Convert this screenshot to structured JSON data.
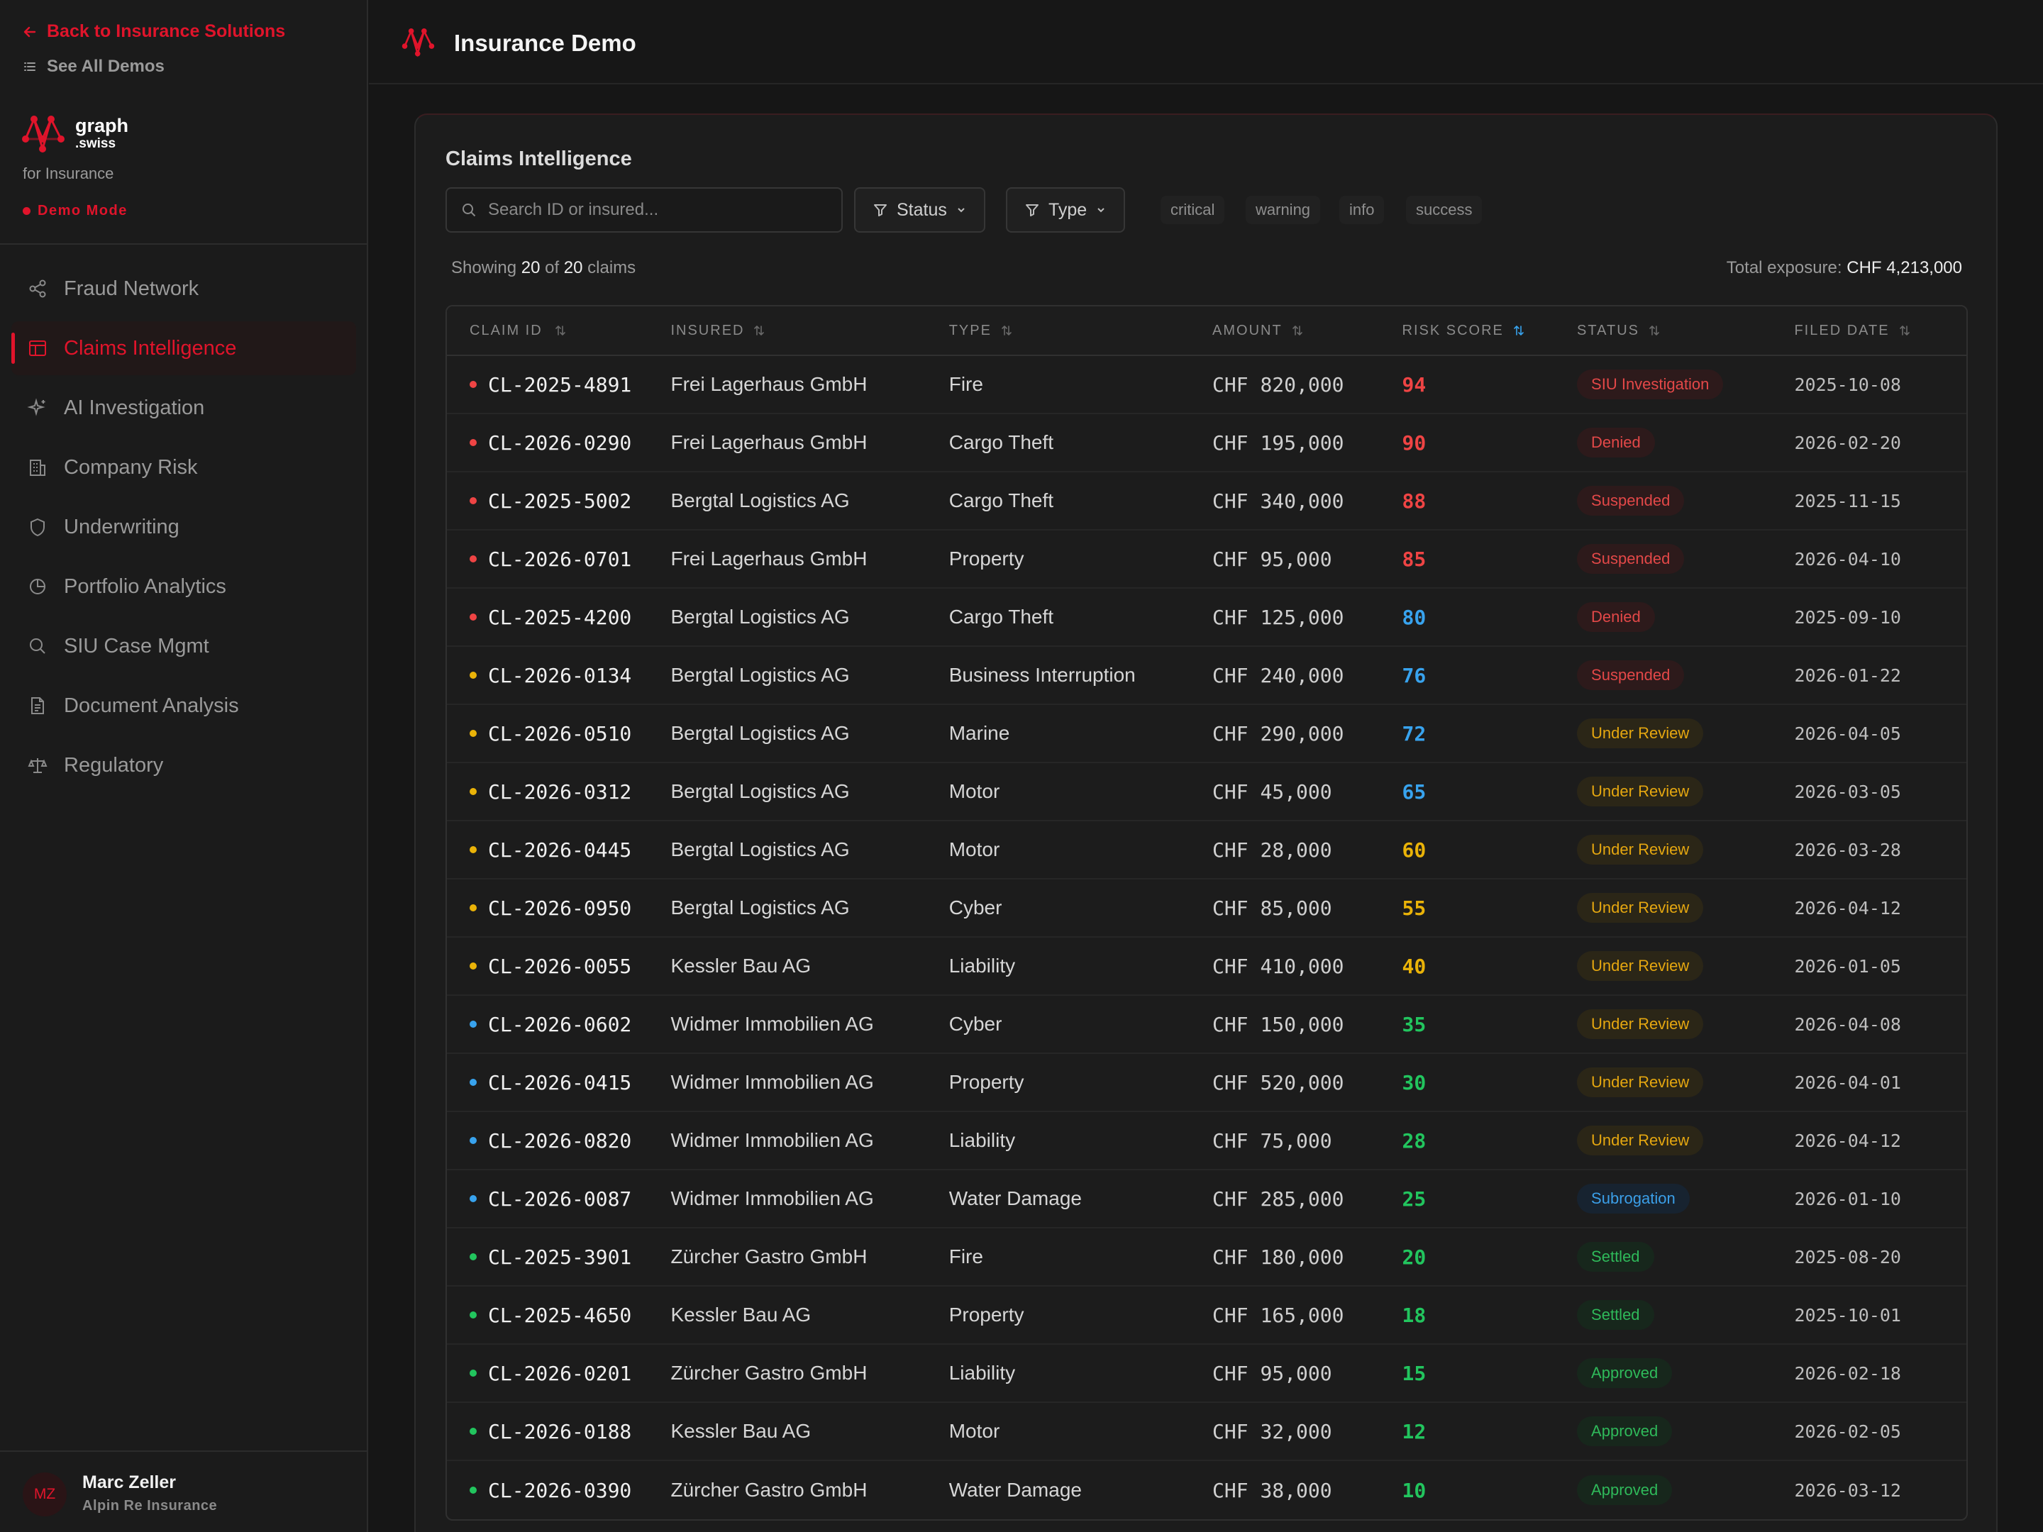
{
  "sidebar": {
    "back_label": "Back to Insurance Solutions",
    "see_all_label": "See All Demos",
    "brand_name": "graph",
    "brand_tld": ".swiss",
    "brand_sub": "for Insurance",
    "mode_label": "Demo Mode",
    "nav": [
      {
        "label": "Fraud Network",
        "icon": "share-nodes-icon"
      },
      {
        "label": "Claims Intelligence",
        "icon": "table-icon",
        "active": true
      },
      {
        "label": "AI Investigation",
        "icon": "sparkles-icon"
      },
      {
        "label": "Company Risk",
        "icon": "building-icon"
      },
      {
        "label": "Underwriting",
        "icon": "shield-icon"
      },
      {
        "label": "Portfolio Analytics",
        "icon": "pie-chart-icon"
      },
      {
        "label": "SIU Case Mgmt",
        "icon": "search-icon"
      },
      {
        "label": "Document Analysis",
        "icon": "document-icon"
      },
      {
        "label": "Regulatory",
        "icon": "scale-icon"
      }
    ],
    "user": {
      "initials": "MZ",
      "name": "Marc Zeller",
      "org": "Alpin Re Insurance"
    }
  },
  "header": {
    "title": "Insurance Demo"
  },
  "main": {
    "title": "Claims Intelligence",
    "search_placeholder": "Search ID or insured...",
    "filter_status": "Status",
    "filter_type": "Type",
    "chips": [
      "critical",
      "warning",
      "info",
      "success"
    ],
    "showing_prefix": "Showing",
    "showing_count": "20",
    "showing_of": "of",
    "showing_total": "20",
    "showing_suffix": "claims",
    "exposure_label": "Total exposure:",
    "exposure_value": "CHF 4,213,000",
    "columns": [
      "CLAIM ID",
      "INSURED",
      "TYPE",
      "AMOUNT",
      "RISK SCORE",
      "STATUS",
      "FILED DATE"
    ],
    "sorted_column": "RISK SCORE",
    "colors": {
      "accent": "#e0142b",
      "risk_red": "#ef4444",
      "risk_blue": "#38a3ee",
      "risk_amber": "#eab308",
      "risk_green": "#22c55e"
    },
    "claims": [
      {
        "id": "CL-2025-4891",
        "insured": "Frei Lagerhaus GmbH",
        "type": "Fire",
        "amount": "CHF 820,000",
        "risk": "94",
        "status": "SIU Investigation",
        "date": "2025-10-08",
        "severity": "critical"
      },
      {
        "id": "CL-2026-0290",
        "insured": "Frei Lagerhaus GmbH",
        "type": "Cargo Theft",
        "amount": "CHF 195,000",
        "risk": "90",
        "status": "Denied",
        "date": "2026-02-20",
        "severity": "critical"
      },
      {
        "id": "CL-2025-5002",
        "insured": "Bergtal Logistics AG",
        "type": "Cargo Theft",
        "amount": "CHF 340,000",
        "risk": "88",
        "status": "Suspended",
        "date": "2025-11-15",
        "severity": "critical"
      },
      {
        "id": "CL-2026-0701",
        "insured": "Frei Lagerhaus GmbH",
        "type": "Property",
        "amount": "CHF 95,000",
        "risk": "85",
        "status": "Suspended",
        "date": "2026-04-10",
        "severity": "critical"
      },
      {
        "id": "CL-2025-4200",
        "insured": "Bergtal Logistics AG",
        "type": "Cargo Theft",
        "amount": "CHF 125,000",
        "risk": "80",
        "status": "Denied",
        "date": "2025-09-10",
        "severity": "critical"
      },
      {
        "id": "CL-2026-0134",
        "insured": "Bergtal Logistics AG",
        "type": "Business Interruption",
        "amount": "CHF 240,000",
        "risk": "76",
        "status": "Suspended",
        "date": "2026-01-22",
        "severity": "warning"
      },
      {
        "id": "CL-2026-0510",
        "insured": "Bergtal Logistics AG",
        "type": "Marine",
        "amount": "CHF 290,000",
        "risk": "72",
        "status": "Under Review",
        "date": "2026-04-05",
        "severity": "warning"
      },
      {
        "id": "CL-2026-0312",
        "insured": "Bergtal Logistics AG",
        "type": "Motor",
        "amount": "CHF 45,000",
        "risk": "65",
        "status": "Under Review",
        "date": "2026-03-05",
        "severity": "warning"
      },
      {
        "id": "CL-2026-0445",
        "insured": "Bergtal Logistics AG",
        "type": "Motor",
        "amount": "CHF 28,000",
        "risk": "60",
        "status": "Under Review",
        "date": "2026-03-28",
        "severity": "warning"
      },
      {
        "id": "CL-2026-0950",
        "insured": "Bergtal Logistics AG",
        "type": "Cyber",
        "amount": "CHF 85,000",
        "risk": "55",
        "status": "Under Review",
        "date": "2026-04-12",
        "severity": "warning"
      },
      {
        "id": "CL-2026-0055",
        "insured": "Kessler Bau AG",
        "type": "Liability",
        "amount": "CHF 410,000",
        "risk": "40",
        "status": "Under Review",
        "date": "2026-01-05",
        "severity": "warning"
      },
      {
        "id": "CL-2026-0602",
        "insured": "Widmer Immobilien AG",
        "type": "Cyber",
        "amount": "CHF 150,000",
        "risk": "35",
        "status": "Under Review",
        "date": "2026-04-08",
        "severity": "info"
      },
      {
        "id": "CL-2026-0415",
        "insured": "Widmer Immobilien AG",
        "type": "Property",
        "amount": "CHF 520,000",
        "risk": "30",
        "status": "Under Review",
        "date": "2026-04-01",
        "severity": "info"
      },
      {
        "id": "CL-2026-0820",
        "insured": "Widmer Immobilien AG",
        "type": "Liability",
        "amount": "CHF 75,000",
        "risk": "28",
        "status": "Under Review",
        "date": "2026-04-12",
        "severity": "info"
      },
      {
        "id": "CL-2026-0087",
        "insured": "Widmer Immobilien AG",
        "type": "Water Damage",
        "amount": "CHF 285,000",
        "risk": "25",
        "status": "Subrogation",
        "date": "2026-01-10",
        "severity": "info"
      },
      {
        "id": "CL-2025-3901",
        "insured": "Zürcher Gastro GmbH",
        "type": "Fire",
        "amount": "CHF 180,000",
        "risk": "20",
        "status": "Settled",
        "date": "2025-08-20",
        "severity": "success"
      },
      {
        "id": "CL-2025-4650",
        "insured": "Kessler Bau AG",
        "type": "Property",
        "amount": "CHF 165,000",
        "risk": "18",
        "status": "Settled",
        "date": "2025-10-01",
        "severity": "success"
      },
      {
        "id": "CL-2026-0201",
        "insured": "Zürcher Gastro GmbH",
        "type": "Liability",
        "amount": "CHF 95,000",
        "risk": "15",
        "status": "Approved",
        "date": "2026-02-18",
        "severity": "success"
      },
      {
        "id": "CL-2026-0188",
        "insured": "Kessler Bau AG",
        "type": "Motor",
        "amount": "CHF 32,000",
        "risk": "12",
        "status": "Approved",
        "date": "2026-02-05",
        "severity": "success"
      },
      {
        "id": "CL-2026-0390",
        "insured": "Zürcher Gastro GmbH",
        "type": "Water Damage",
        "amount": "CHF 38,000",
        "risk": "10",
        "status": "Approved",
        "date": "2026-03-12",
        "severity": "success"
      }
    ]
  }
}
